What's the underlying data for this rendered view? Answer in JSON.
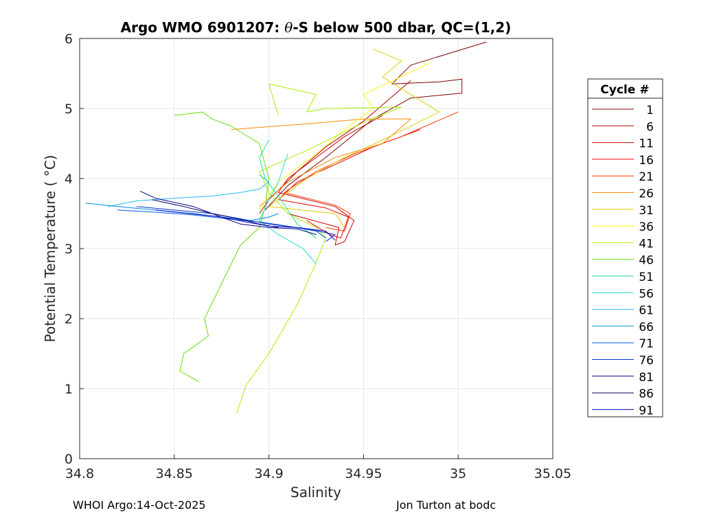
{
  "chart_data": {
    "type": "line",
    "title_pre": "Argo WMO 6901207: ",
    "title_theta": "θ",
    "title_post": "-S below 500 dbar,  QC=(1,2)",
    "xlabel": "Salinity",
    "ylabel": "Potential Temperature ( °C)",
    "xlim": [
      34.8,
      35.05
    ],
    "ylim": [
      0,
      6
    ],
    "xticks": [
      34.8,
      34.85,
      34.9,
      34.95,
      35,
      35.05
    ],
    "xtick_labels": [
      "34.8",
      "34.85",
      "34.9",
      "34.95",
      "35",
      "35.05"
    ],
    "yticks": [
      0,
      1,
      2,
      3,
      4,
      5,
      6
    ],
    "ytick_labels": [
      "0",
      "1",
      "2",
      "3",
      "4",
      "5",
      "6"
    ],
    "grid": true,
    "legend_title": "Cycle #",
    "legend_position": "right",
    "series": [
      {
        "name": "1",
        "color": "#800000",
        "points": [
          [
            35.015,
            5.95
          ],
          [
            34.975,
            5.62
          ],
          [
            34.965,
            5.35
          ],
          [
            34.99,
            5.38
          ],
          [
            35.002,
            5.42
          ],
          [
            35.002,
            5.22
          ],
          [
            34.975,
            5.15
          ],
          [
            34.955,
            4.85
          ],
          [
            34.93,
            4.3
          ],
          [
            34.91,
            3.9
          ],
          [
            34.898,
            3.55
          ]
        ]
      },
      {
        "name": "6",
        "color": "#AA0000",
        "points": [
          [
            34.975,
            5.4
          ],
          [
            34.96,
            5.05
          ],
          [
            34.95,
            4.82
          ],
          [
            34.93,
            4.45
          ],
          [
            34.915,
            4.1
          ],
          [
            34.9,
            3.7
          ],
          [
            34.895,
            3.5
          ]
        ]
      },
      {
        "name": "11",
        "color": "#CC0000",
        "points": [
          [
            34.96,
            4.9
          ],
          [
            34.94,
            4.6
          ],
          [
            34.925,
            4.3
          ],
          [
            34.91,
            4.0
          ],
          [
            34.905,
            3.8
          ],
          [
            34.935,
            3.6
          ],
          [
            34.945,
            3.4
          ],
          [
            34.94,
            3.1
          ],
          [
            34.935,
            3.05
          ],
          [
            34.937,
            3.3
          ],
          [
            34.91,
            3.5
          ]
        ]
      },
      {
        "name": "16",
        "color": "#EE0000",
        "points": [
          [
            34.98,
            4.7
          ],
          [
            34.955,
            4.45
          ],
          [
            34.935,
            4.2
          ],
          [
            34.915,
            3.95
          ],
          [
            34.905,
            3.7
          ],
          [
            34.93,
            3.58
          ],
          [
            34.942,
            3.45
          ],
          [
            34.938,
            3.15
          ],
          [
            34.932,
            3.2
          ],
          [
            34.92,
            3.4
          ]
        ]
      },
      {
        "name": "21",
        "color": "#FF3300",
        "points": [
          [
            35.0,
            4.95
          ],
          [
            34.97,
            4.6
          ],
          [
            34.945,
            4.35
          ],
          [
            34.925,
            4.1
          ],
          [
            34.908,
            3.8
          ],
          [
            34.935,
            3.62
          ],
          [
            34.943,
            3.5
          ],
          [
            34.94,
            3.25
          ],
          [
            34.93,
            3.3
          ]
        ]
      },
      {
        "name": "26",
        "color": "#FF8800",
        "points": [
          [
            34.88,
            4.7
          ],
          [
            34.92,
            4.78
          ],
          [
            34.95,
            4.85
          ],
          [
            34.975,
            4.85
          ],
          [
            34.96,
            4.5
          ],
          [
            34.935,
            4.3
          ],
          [
            34.91,
            3.95
          ],
          [
            34.895,
            3.6
          ]
        ]
      },
      {
        "name": "31",
        "color": "#DDCC00",
        "points": [
          [
            34.955,
            5.85
          ],
          [
            34.97,
            5.68
          ],
          [
            34.96,
            5.45
          ],
          [
            34.99,
            4.95
          ],
          [
            34.96,
            4.55
          ],
          [
            34.94,
            4.3
          ],
          [
            34.92,
            4.0
          ],
          [
            34.9,
            3.6
          ],
          [
            34.935,
            3.5
          ],
          [
            34.94,
            3.3
          ]
        ]
      },
      {
        "name": "36",
        "color": "#FFFF00",
        "points": [
          [
            34.985,
            5.65
          ],
          [
            34.95,
            5.2
          ],
          [
            34.955,
            5.0
          ],
          [
            34.94,
            4.7
          ],
          [
            34.925,
            4.35
          ],
          [
            34.905,
            3.95
          ],
          [
            34.895,
            3.55
          ]
        ]
      },
      {
        "name": "41",
        "color": "#AAEE00",
        "points": [
          [
            34.883,
            0.65
          ],
          [
            34.888,
            1.05
          ],
          [
            34.9,
            1.5
          ],
          [
            34.915,
            2.2
          ],
          [
            34.925,
            2.8
          ],
          [
            34.93,
            3.15
          ],
          [
            34.925,
            3.3
          ],
          [
            34.91,
            3.5
          ],
          [
            34.9,
            3.8
          ],
          [
            34.895,
            4.1
          ],
          [
            34.92,
            4.4
          ],
          [
            34.95,
            4.8
          ],
          [
            34.97,
            5.02
          ],
          [
            34.93,
            5.0
          ],
          [
            34.92,
            4.95
          ],
          [
            34.925,
            5.2
          ],
          [
            34.9,
            5.35
          ],
          [
            34.905,
            4.9
          ]
        ]
      },
      {
        "name": "46",
        "color": "#66DD00",
        "points": [
          [
            34.863,
            1.1
          ],
          [
            34.853,
            1.25
          ],
          [
            34.855,
            1.5
          ],
          [
            34.868,
            1.75
          ],
          [
            34.866,
            2.0
          ],
          [
            34.875,
            2.5
          ],
          [
            34.885,
            3.05
          ],
          [
            34.895,
            3.3
          ],
          [
            34.898,
            3.6
          ],
          [
            34.9,
            4.0
          ],
          [
            34.895,
            4.5
          ],
          [
            34.88,
            4.75
          ],
          [
            34.87,
            4.85
          ],
          [
            34.865,
            4.95
          ],
          [
            34.85,
            4.9
          ]
        ]
      },
      {
        "name": "51",
        "color": "#22DD88",
        "points": [
          [
            34.9,
            4.55
          ],
          [
            34.895,
            4.3
          ],
          [
            34.898,
            4.0
          ],
          [
            34.905,
            3.75
          ],
          [
            34.91,
            3.55
          ],
          [
            34.915,
            3.35
          ],
          [
            34.925,
            3.15
          ]
        ]
      },
      {
        "name": "56",
        "color": "#22DDCC",
        "points": [
          [
            34.925,
            2.78
          ],
          [
            34.918,
            3.0
          ],
          [
            34.905,
            3.2
          ],
          [
            34.895,
            3.4
          ],
          [
            34.9,
            3.7
          ],
          [
            34.905,
            3.95
          ],
          [
            34.908,
            4.2
          ],
          [
            34.91,
            4.35
          ]
        ]
      },
      {
        "name": "61",
        "color": "#22BBEE",
        "points": [
          [
            34.815,
            3.6
          ],
          [
            34.83,
            3.68
          ],
          [
            34.85,
            3.72
          ],
          [
            34.87,
            3.75
          ],
          [
            34.885,
            3.8
          ],
          [
            34.895,
            3.85
          ],
          [
            34.9,
            3.95
          ],
          [
            34.895,
            4.05
          ]
        ]
      },
      {
        "name": "66",
        "color": "#0088DD",
        "points": [
          [
            34.803,
            3.65
          ],
          [
            34.82,
            3.6
          ],
          [
            34.84,
            3.55
          ],
          [
            34.86,
            3.5
          ],
          [
            34.875,
            3.45
          ],
          [
            34.89,
            3.4
          ],
          [
            34.9,
            3.45
          ],
          [
            34.905,
            3.5
          ]
        ]
      },
      {
        "name": "71",
        "color": "#0055EE",
        "points": [
          [
            34.82,
            3.55
          ],
          [
            34.84,
            3.52
          ],
          [
            34.86,
            3.48
          ],
          [
            34.88,
            3.42
          ],
          [
            34.895,
            3.38
          ],
          [
            34.91,
            3.32
          ],
          [
            34.925,
            3.25
          ],
          [
            34.93,
            3.15
          ]
        ]
      },
      {
        "name": "76",
        "color": "#0033CC",
        "points": [
          [
            34.83,
            3.6
          ],
          [
            34.85,
            3.55
          ],
          [
            34.87,
            3.5
          ],
          [
            34.89,
            3.4
          ],
          [
            34.9,
            3.35
          ],
          [
            34.92,
            3.28
          ],
          [
            34.935,
            3.2
          ],
          [
            34.93,
            3.1
          ]
        ]
      },
      {
        "name": "81",
        "color": "#000088",
        "points": [
          [
            34.832,
            3.82
          ],
          [
            34.84,
            3.72
          ],
          [
            34.86,
            3.6
          ],
          [
            34.875,
            3.45
          ],
          [
            34.885,
            3.35
          ],
          [
            34.9,
            3.3
          ],
          [
            34.915,
            3.28
          ],
          [
            34.925,
            3.2
          ]
        ]
      },
      {
        "name": "86",
        "color": "#000066",
        "points": [
          [
            34.838,
            3.7
          ],
          [
            34.855,
            3.6
          ],
          [
            34.87,
            3.5
          ],
          [
            34.885,
            3.42
          ],
          [
            34.895,
            3.35
          ],
          [
            34.905,
            3.3
          ]
        ]
      },
      {
        "name": "91",
        "color": "#0000BB",
        "points": [
          [
            34.84,
            3.55
          ],
          [
            34.858,
            3.5
          ],
          [
            34.875,
            3.45
          ],
          [
            34.888,
            3.38
          ],
          [
            34.9,
            3.32
          ],
          [
            34.915,
            3.3
          ],
          [
            34.93,
            3.25
          ],
          [
            34.935,
            3.12
          ]
        ]
      }
    ]
  },
  "footer": {
    "left": "WHOI Argo:14-Oct-2025",
    "right": "Jon Turton at bodc"
  }
}
